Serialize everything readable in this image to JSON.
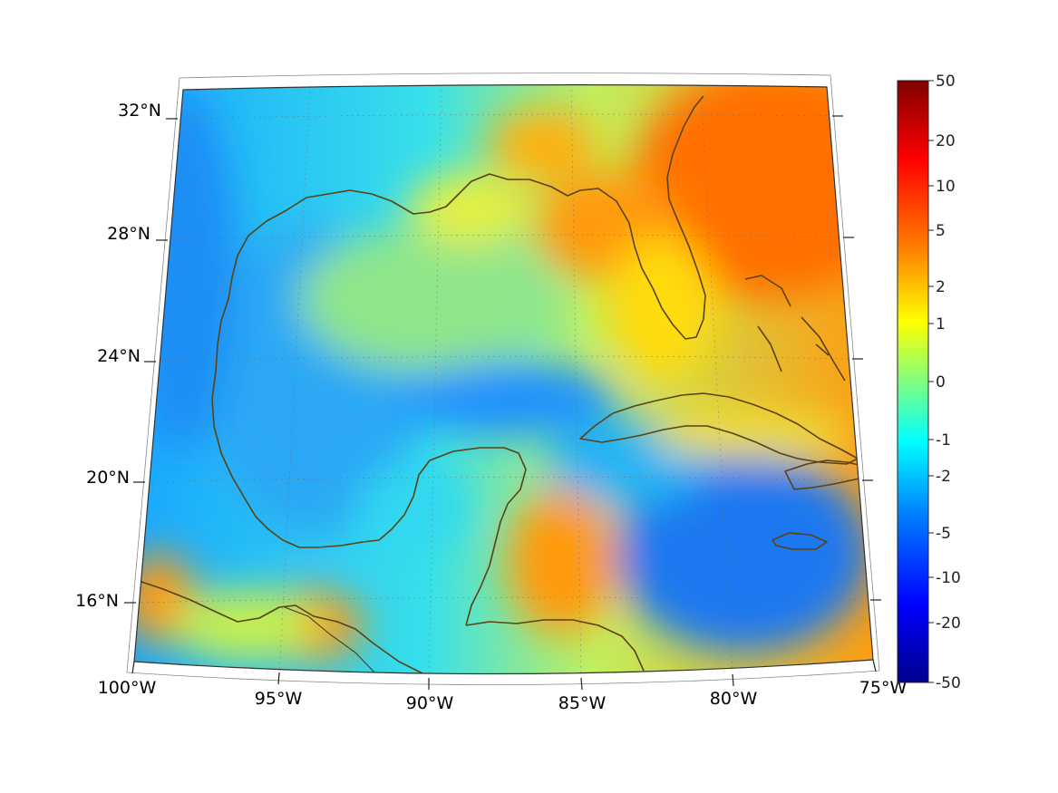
{
  "map": {
    "lon_labels": [
      "100°W",
      "95°W",
      "90°W",
      "85°W",
      "80°W",
      "75°W"
    ],
    "lat_labels": [
      "32°N",
      "28°N",
      "24°N",
      "20°N",
      "16°N"
    ]
  },
  "colorbar": {
    "tick_labels": [
      "50",
      "20",
      "10",
      "5",
      "2",
      "1",
      "0",
      "-1",
      "-2",
      "-5",
      "-10",
      "-20",
      "-50"
    ],
    "colors": [
      "#00008f",
      "#0000ff",
      "#0080ff",
      "#00ffff",
      "#80ff80",
      "#ffff00",
      "#ff8000",
      "#ff0000",
      "#800000"
    ]
  }
}
